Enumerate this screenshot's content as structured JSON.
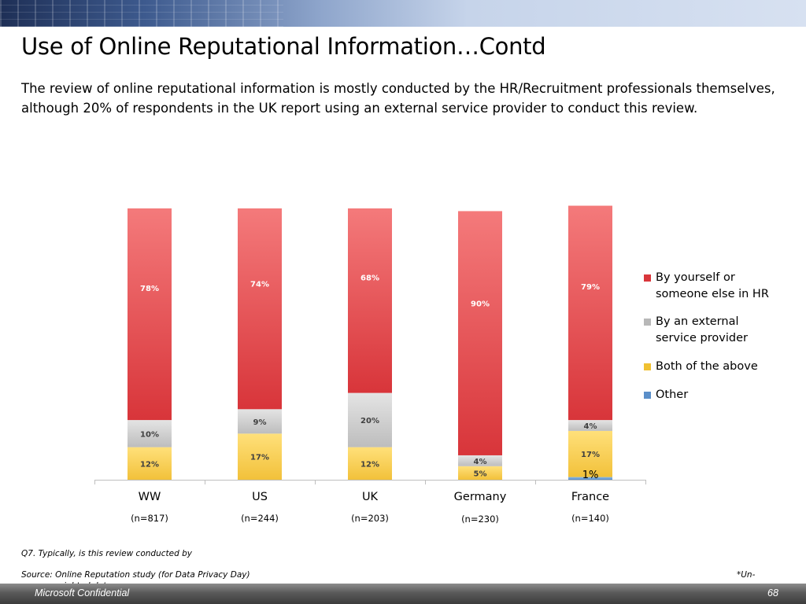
{
  "title": "Use of Online Reputational Information…Contd",
  "subtitle": "The review of online reputational information is mostly conducted by the HR/Recruitment professionals themselves, although 20% of respondents in the UK report using an external service provider to conduct this review.",
  "chart_data": {
    "type": "bar",
    "stacked": true,
    "categories": [
      "WW",
      "US",
      "UK",
      "Germany",
      "France"
    ],
    "sample_sizes": [
      "(n=817)",
      "(n=244)",
      "(n=203)",
      "(n=230)",
      "(n=140)"
    ],
    "series": [
      {
        "name": "Other",
        "values": [
          0,
          0,
          0,
          0,
          1
        ],
        "labels": [
          "",
          "",
          "",
          "",
          "1%"
        ],
        "color": "#5b9bd5"
      },
      {
        "name": "Both of the above",
        "values": [
          12,
          17,
          12,
          5,
          17
        ],
        "labels": [
          "12%",
          "17%",
          "12%",
          "5%",
          "17%"
        ],
        "color": "#f5c842"
      },
      {
        "name": "By an external service provider",
        "values": [
          10,
          9,
          20,
          4,
          4
        ],
        "labels": [
          "10%",
          "9%",
          "20%",
          "4%",
          "4%"
        ],
        "color": "#c8c8c8"
      },
      {
        "name": "By yourself or someone else in HR",
        "values": [
          78,
          74,
          68,
          90,
          79
        ],
        "labels": [
          "78%",
          "74%",
          "68%",
          "90%",
          "79%"
        ],
        "color": "#e0393e"
      }
    ],
    "legend_order": [
      "By yourself or someone else in HR",
      "By an external service provider",
      "Both of the above",
      "Other"
    ],
    "legend_position": "right",
    "ylim": [
      0,
      100
    ],
    "grid": false
  },
  "legend": [
    {
      "label": "By yourself or someone else in HR",
      "color": "#d9363b"
    },
    {
      "label": "By an external service provider",
      "color": "#b8b8b8"
    },
    {
      "label": "Both of the above",
      "color": "#f0c132"
    },
    {
      "label": "Other",
      "color": "#5b8fc9"
    }
  ],
  "footnotes": {
    "question": "Q7. Typically, is this review conducted by",
    "source": "Source: Online Reputation study (for Data Privacy Day)",
    "note_part1": "*Un-",
    "note_part2": "weighted data"
  },
  "footer": {
    "confidential": "Microsoft Confidential",
    "page_number": "68"
  }
}
